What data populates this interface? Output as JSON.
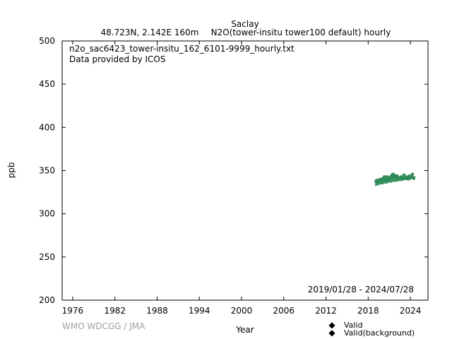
{
  "chart_data": {
    "type": "scatter",
    "title": "Saclay",
    "subtitle_location": "48.723N, 2.142E 160m",
    "subtitle_series": "N2O(tower-insitu tower100 default) hourly",
    "file_name": "n2o_sac6423_tower-insitu_162_6101-9999_hourly.txt",
    "provider": "Data provided by ICOS",
    "date_range": "2019/01/28 - 2024/07/28",
    "xlabel": "Year",
    "ylabel": "ppb",
    "credit": "WMO WDCGG / JMA",
    "xlim": [
      1974.5,
      2026.5
    ],
    "ylim": [
      200,
      500
    ],
    "x_ticks": [
      "1976",
      "1982",
      "1988",
      "1994",
      "2000",
      "2006",
      "2012",
      "2018",
      "2024"
    ],
    "y_ticks": [
      "200",
      "250",
      "300",
      "350",
      "400",
      "450",
      "500"
    ],
    "grid": false,
    "legend_position": "bottom-right",
    "colors": {
      "valid": "#e8b000",
      "background": "#2e8b57"
    },
    "series": [
      {
        "name": "Valid",
        "x": [],
        "y": []
      },
      {
        "name": "Valid(background)",
        "x": [
          2019.1,
          2019.3,
          2019.5,
          2019.7,
          2019.9,
          2020.1,
          2020.3,
          2020.5,
          2020.7,
          2020.9,
          2021.1,
          2021.3,
          2021.5,
          2021.7,
          2021.9,
          2022.1,
          2022.3,
          2022.5,
          2022.7,
          2022.9,
          2023.1,
          2023.3,
          2023.5,
          2023.7,
          2023.9,
          2024.1,
          2024.3,
          2024.5
        ],
        "y_low": [
          332,
          333,
          333,
          334,
          334,
          334,
          335,
          335,
          335,
          336,
          336,
          336,
          337,
          337,
          337,
          337,
          338,
          338,
          338,
          338,
          339,
          339,
          339,
          339,
          339,
          340,
          340,
          339
        ],
        "y_high": [
          339,
          340,
          339,
          341,
          340,
          342,
          344,
          341,
          344,
          342,
          343,
          345,
          347,
          346,
          344,
          345,
          343,
          342,
          344,
          343,
          346,
          343,
          344,
          342,
          345,
          344,
          347,
          343
        ]
      }
    ]
  }
}
